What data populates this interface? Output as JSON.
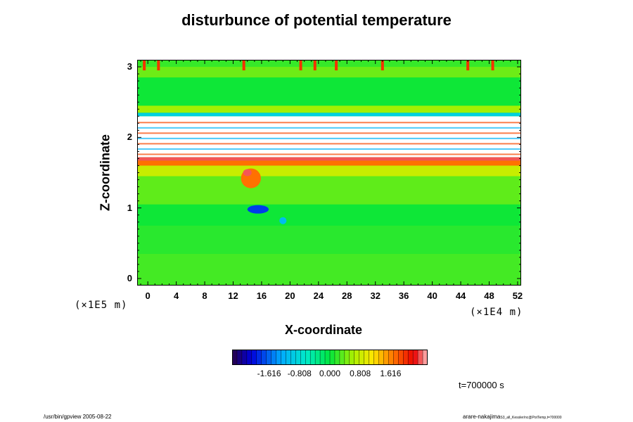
{
  "chart_data": {
    "type": "heatmap",
    "title": "disturbunce of potential temperature",
    "xlabel": "X-coordinate",
    "ylabel": "Z-coordinate",
    "x_unit": "(×1E4 m)",
    "y_unit": "(×1E5 m)",
    "xlim": [
      -1.5,
      52.5
    ],
    "ylim": [
      -0.1,
      3.1
    ],
    "x_ticks": [
      0,
      4,
      8,
      12,
      16,
      20,
      24,
      28,
      32,
      36,
      40,
      44,
      48,
      52
    ],
    "y_ticks": [
      0,
      1,
      2,
      3
    ],
    "colorbar": {
      "range": [
        -2.6,
        2.6
      ],
      "tick_labels": [
        "-1.616",
        "-0.808",
        "0.000",
        "0.808",
        "1.616"
      ],
      "tick_values": [
        -1.616,
        -0.808,
        0.0,
        0.808,
        1.616
      ]
    },
    "bands": [
      {
        "z": [
          -0.1,
          0.35
        ],
        "value": 0.25
      },
      {
        "z": [
          0.35,
          0.75
        ],
        "value": 0.15
      },
      {
        "z": [
          0.75,
          1.05
        ],
        "value": 0.05
      },
      {
        "z": [
          1.05,
          1.45
        ],
        "value": 0.35
      },
      {
        "z": [
          1.45,
          1.6
        ],
        "value": 0.8
      },
      {
        "z": [
          1.6,
          1.67
        ],
        "value": 1.7
      },
      {
        "z": [
          1.67,
          1.72
        ],
        "value": 2.4
      },
      {
        "z": [
          1.72,
          2.3
        ],
        "value": 3.0
      },
      {
        "z": [
          2.3,
          2.35
        ],
        "value": -0.9
      },
      {
        "z": [
          2.35,
          2.45
        ],
        "value": 0.6
      },
      {
        "z": [
          2.45,
          2.85
        ],
        "value": 0.05
      },
      {
        "z": [
          2.85,
          3.0
        ],
        "value": 0.4
      },
      {
        "z": [
          3.0,
          3.1
        ],
        "value": 0.2
      }
    ],
    "features": [
      {
        "x": 14.5,
        "z": 1.42,
        "r": 1.4,
        "rz": 0.14,
        "value": 1.7
      },
      {
        "x": 15.5,
        "z": 0.98,
        "r": 1.5,
        "rz": 0.06,
        "value": -1.8
      },
      {
        "x": 19.0,
        "z": 0.82,
        "r": 0.5,
        "rz": 0.05,
        "value": -1.1
      },
      {
        "x": 14.0,
        "z": 1.5,
        "r": 0.6,
        "rz": 0.05,
        "value": 2.4
      }
    ],
    "top_spikes_x": [
      -0.5,
      1.5,
      13.5,
      21.5,
      23.5,
      26.5,
      33.0,
      45.0,
      48.5
    ]
  },
  "timestamp": "t=700000 s",
  "footer": {
    "left": "/usr/bin/gpview 2005-08-22",
    "right": "arare-nakajima",
    "right_small": "S3_all_Kessler/nc@PotTemp,t=700000"
  }
}
